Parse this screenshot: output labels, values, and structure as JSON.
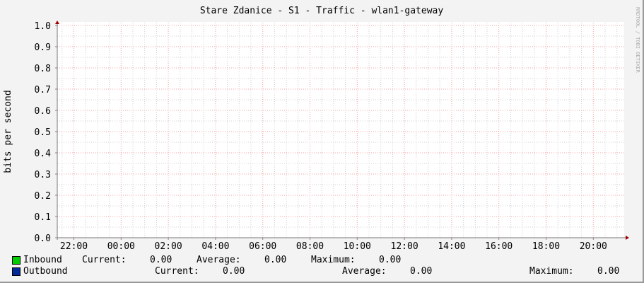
{
  "chart_data": {
    "type": "line",
    "title": "Stare Zdanice - S1 - Traffic - wlan1-gateway",
    "ylabel": "bits per second",
    "xlabel": "",
    "ylim": [
      0,
      1.0
    ],
    "y_ticks": [
      "0.0",
      "0.1",
      "0.2",
      "0.3",
      "0.4",
      "0.5",
      "0.6",
      "0.7",
      "0.8",
      "0.9",
      "1.0"
    ],
    "x_ticks": [
      "22:00",
      "00:00",
      "02:00",
      "04:00",
      "06:00",
      "08:00",
      "10:00",
      "12:00",
      "14:00",
      "16:00",
      "18:00",
      "20:00"
    ],
    "grid": true,
    "watermark": "RRDTOOL / TOBI OETIKER",
    "series": [
      {
        "name": "Inbound",
        "color": "#00cc00",
        "values": []
      },
      {
        "name": "Outbound",
        "color": "#002a97",
        "values": []
      }
    ]
  },
  "legend": {
    "inbound": {
      "label": "Inbound",
      "current_label": "Current:",
      "current": "0.00",
      "average_label": "Average:",
      "average": "0.00",
      "maximum_label": "Maximum:",
      "maximum": "0.00"
    },
    "outbound": {
      "label": "Outbound",
      "current_label": "Current:",
      "current": "0.00",
      "average_label": "Average:",
      "average": "0.00",
      "maximum_label": "Maximum:",
      "maximum": "0.00"
    }
  }
}
